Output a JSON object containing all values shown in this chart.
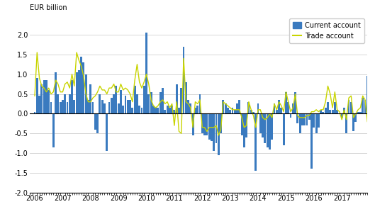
{
  "bar_color": "#3a7abf",
  "line_color": "#c8d400",
  "ylabel": "EUR billion",
  "ylim": [
    -2.0,
    2.5
  ],
  "yticks": [
    -2.0,
    -1.5,
    -1.0,
    -0.5,
    0.0,
    0.5,
    1.0,
    1.5,
    2.0
  ],
  "legend_current": "Current account",
  "legend_trade": "Trade account",
  "current_account": [
    0.05,
    0.9,
    0.45,
    0.75,
    0.85,
    0.85,
    0.6,
    0.3,
    -0.85,
    1.05,
    0.5,
    0.3,
    0.35,
    0.5,
    0.3,
    0.5,
    0.85,
    0.35,
    1.05,
    1.1,
    1.45,
    1.3,
    1.0,
    0.35,
    0.75,
    0.3,
    -0.4,
    -0.5,
    0.5,
    0.35,
    0.25,
    -0.95,
    0.3,
    0.4,
    0.5,
    0.7,
    0.25,
    0.6,
    0.2,
    0.45,
    0.35,
    0.35,
    0.15,
    0.7,
    0.5,
    0.2,
    0.15,
    0.7,
    2.05,
    0.5,
    0.55,
    0.2,
    0.15,
    0.15,
    0.55,
    0.65,
    0.1,
    0.2,
    0.15,
    0.2,
    0.1,
    0.75,
    0.15,
    0.65,
    1.7,
    0.8,
    0.35,
    0.25,
    -0.55,
    0.15,
    0.2,
    0.5,
    -0.5,
    -0.55,
    -0.55,
    -0.65,
    -0.7,
    -0.95,
    -0.75,
    -1.05,
    -0.5,
    0.35,
    0.25,
    0.15,
    0.1,
    0.15,
    0.1,
    0.25,
    0.35,
    -0.55,
    -0.85,
    -0.6,
    0.3,
    0.1,
    0.05,
    -1.45,
    0.25,
    -0.5,
    -0.6,
    -0.75,
    -0.85,
    -0.9,
    -0.65,
    0.25,
    0.1,
    0.35,
    0.15,
    -0.8,
    0.55,
    0.3,
    -0.1,
    0.25,
    0.55,
    -0.25,
    -0.5,
    -0.3,
    -0.3,
    -0.3,
    -0.15,
    -1.4,
    -0.35,
    -0.5,
    -0.35,
    0.1,
    0.05,
    0.15,
    0.3,
    0.1,
    0.1,
    0.3,
    0.1,
    0.0,
    -0.1,
    0.15,
    -0.5,
    0.35,
    0.3,
    -0.45,
    -0.2,
    0.05,
    0.05,
    0.4,
    0.35,
    0.95
  ],
  "trade_account": [
    0.45,
    1.55,
    0.9,
    0.7,
    0.65,
    0.55,
    0.65,
    0.5,
    0.55,
    0.85,
    0.75,
    0.55,
    0.55,
    0.75,
    0.8,
    0.65,
    1.0,
    0.7,
    1.55,
    1.35,
    1.2,
    0.95,
    0.5,
    0.3,
    0.3,
    0.4,
    0.45,
    0.55,
    0.7,
    0.6,
    0.6,
    0.5,
    0.65,
    0.65,
    0.75,
    0.55,
    0.55,
    0.75,
    0.6,
    0.65,
    0.6,
    0.5,
    0.3,
    0.85,
    1.25,
    0.8,
    0.65,
    0.8,
    1.0,
    0.75,
    0.35,
    0.2,
    0.15,
    0.2,
    0.3,
    0.35,
    0.25,
    0.3,
    0.15,
    0.25,
    -0.3,
    0.3,
    -0.45,
    -0.5,
    1.4,
    0.3,
    0.25,
    0.15,
    -0.35,
    0.3,
    0.25,
    0.35,
    -0.35,
    -0.35,
    -0.45,
    -0.35,
    -0.35,
    -0.35,
    -0.3,
    -0.55,
    -0.4,
    0.3,
    0.25,
    0.2,
    0.15,
    0.1,
    0.1,
    0.1,
    0.1,
    -0.1,
    -0.35,
    -0.3,
    0.3,
    0.1,
    -0.05,
    -0.35,
    0.1,
    0.1,
    -0.1,
    -0.15,
    -0.1,
    0.0,
    -0.1,
    0.25,
    0.1,
    0.3,
    0.2,
    0.05,
    0.55,
    0.3,
    0.05,
    0.15,
    0.5,
    -0.05,
    -0.1,
    -0.1,
    -0.1,
    -0.05,
    -0.05,
    0.05,
    0.05,
    0.1,
    0.05,
    0.1,
    0.1,
    0.3,
    0.7,
    0.5,
    0.15,
    0.55,
    0.1,
    0.05,
    -0.15,
    0.1,
    -0.15,
    0.4,
    0.45,
    -0.1,
    0.0,
    0.1,
    0.15,
    0.45,
    0.35,
    -0.2
  ]
}
